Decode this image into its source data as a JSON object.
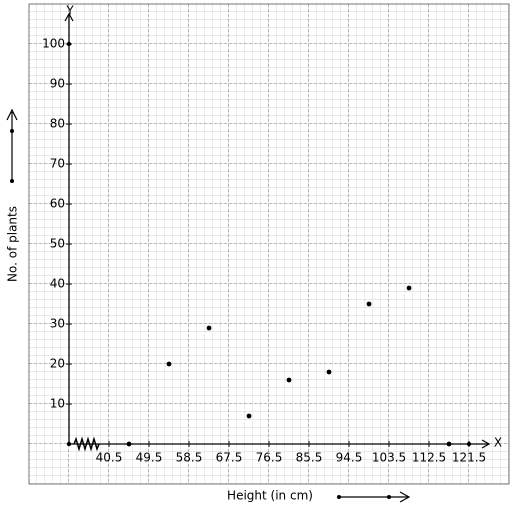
{
  "chart_data": {
    "type": "line",
    "x_label": "Height (in cm)",
    "y_label": "No. of plants",
    "x_axis_name": "X",
    "y_axis_name": "Y",
    "x": [
      45,
      54,
      63,
      72,
      81,
      90,
      99,
      108,
      117
    ],
    "series": [
      {
        "color": "#000000",
        "values": [
          0,
          20,
          29,
          7,
          16,
          18,
          35,
          39,
          0
        ]
      }
    ],
    "xlim": [
      31.5,
      126
    ],
    "xticks": [
      40.5,
      49.5,
      58.5,
      67.5,
      76.5,
      85.5,
      94.5,
      103.5,
      112.5,
      121.5
    ],
    "ylim": [
      0,
      107.5
    ],
    "yticks": [
      10,
      20,
      30,
      40,
      50,
      60,
      70,
      80,
      90,
      100
    ],
    "grid": true
  }
}
